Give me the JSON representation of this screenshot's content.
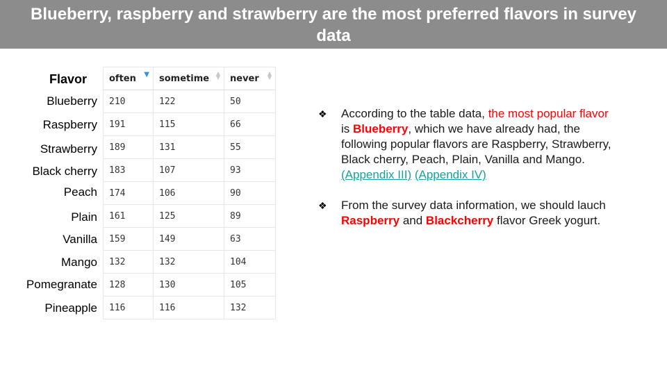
{
  "slide": {
    "title": "Blueberry, raspberry and strawberry are the most preferred flavors in survey data"
  },
  "table": {
    "row_header": "Flavor",
    "columns": [
      "often",
      "sometime",
      "never"
    ],
    "rows": [
      {
        "flavor": "Blueberry",
        "often": "210",
        "sometime": "122",
        "never": "50"
      },
      {
        "flavor": "Raspberry",
        "often": "191",
        "sometime": "115",
        "never": "66"
      },
      {
        "flavor": "Strawberry",
        "often": "189",
        "sometime": "131",
        "never": "55"
      },
      {
        "flavor": "Black cherry",
        "often": "183",
        "sometime": "107",
        "never": "93"
      },
      {
        "flavor": "Peach",
        "often": "174",
        "sometime": "106",
        "never": "90"
      },
      {
        "flavor": "Plain",
        "often": "161",
        "sometime": "125",
        "never": "89"
      },
      {
        "flavor": "Vanilla",
        "often": "159",
        "sometime": "149",
        "never": "63"
      },
      {
        "flavor": "Mango",
        "often": "132",
        "sometime": "132",
        "never": "104"
      },
      {
        "flavor": "Pomegranate",
        "often": "128",
        "sometime": "130",
        "never": "105"
      },
      {
        "flavor": "Pineapple",
        "often": "116",
        "sometime": "116",
        "never": "132"
      }
    ],
    "sorted_column": "often",
    "sort_direction": "descending"
  },
  "notes": {
    "bullet_icon": "diamond-bullet-icon",
    "item1": {
      "t1": "According to the table data, ",
      "t2": "the most popular flavor",
      "t3": " is ",
      "t4": "Blueberry",
      "t5": ", which we have already had, the following popular flavors are Raspberry, Strawberry, Black cherry, Peach, Plain, Vanilla and Mango. ",
      "link1": "(Appendix III)",
      "link2": "(Appendix IV)"
    },
    "item2": {
      "t1": "From the survey data information, we should lauch ",
      "t2": "Raspberry",
      "t3": " and ",
      "t4": "Blackcherry",
      "t5": " flavor Greek yogurt."
    }
  },
  "colors": {
    "title_bar": "#8c8c8c",
    "highlight": "#ff0000",
    "link": "#1a9e9e",
    "sort_active": "#3a8fd9"
  }
}
